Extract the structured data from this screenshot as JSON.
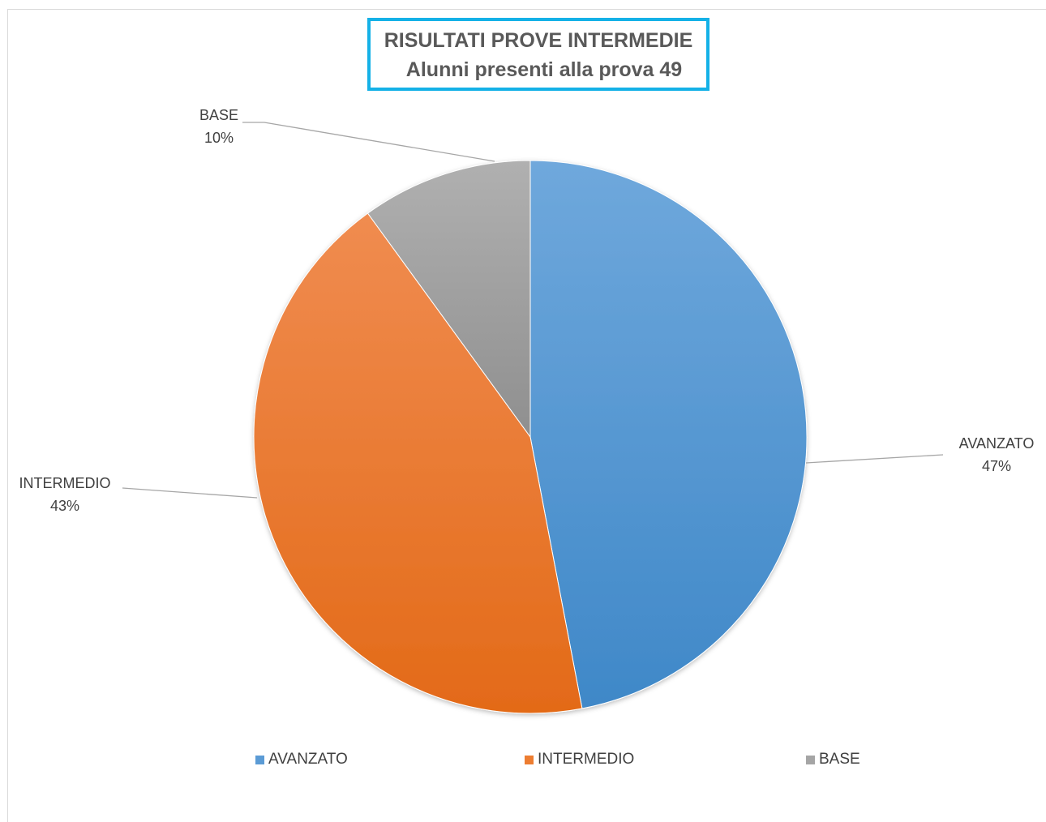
{
  "chart_data": {
    "type": "pie",
    "title": "RISULTATI PROVE INTERMEDIE",
    "subtitle": "Alunni presenti alla prova 49",
    "categories": [
      "AVANZATO",
      "INTERMEDIO",
      "BASE"
    ],
    "values": [
      47,
      43,
      10
    ],
    "value_labels": [
      "47%",
      "43%",
      "10%"
    ],
    "colors": [
      "#5b9bd5",
      "#ed7d31",
      "#a5a5a5"
    ],
    "legend_position": "bottom"
  },
  "legend": {
    "items": [
      "AVANZATO",
      "INTERMEDIO",
      "BASE"
    ]
  }
}
